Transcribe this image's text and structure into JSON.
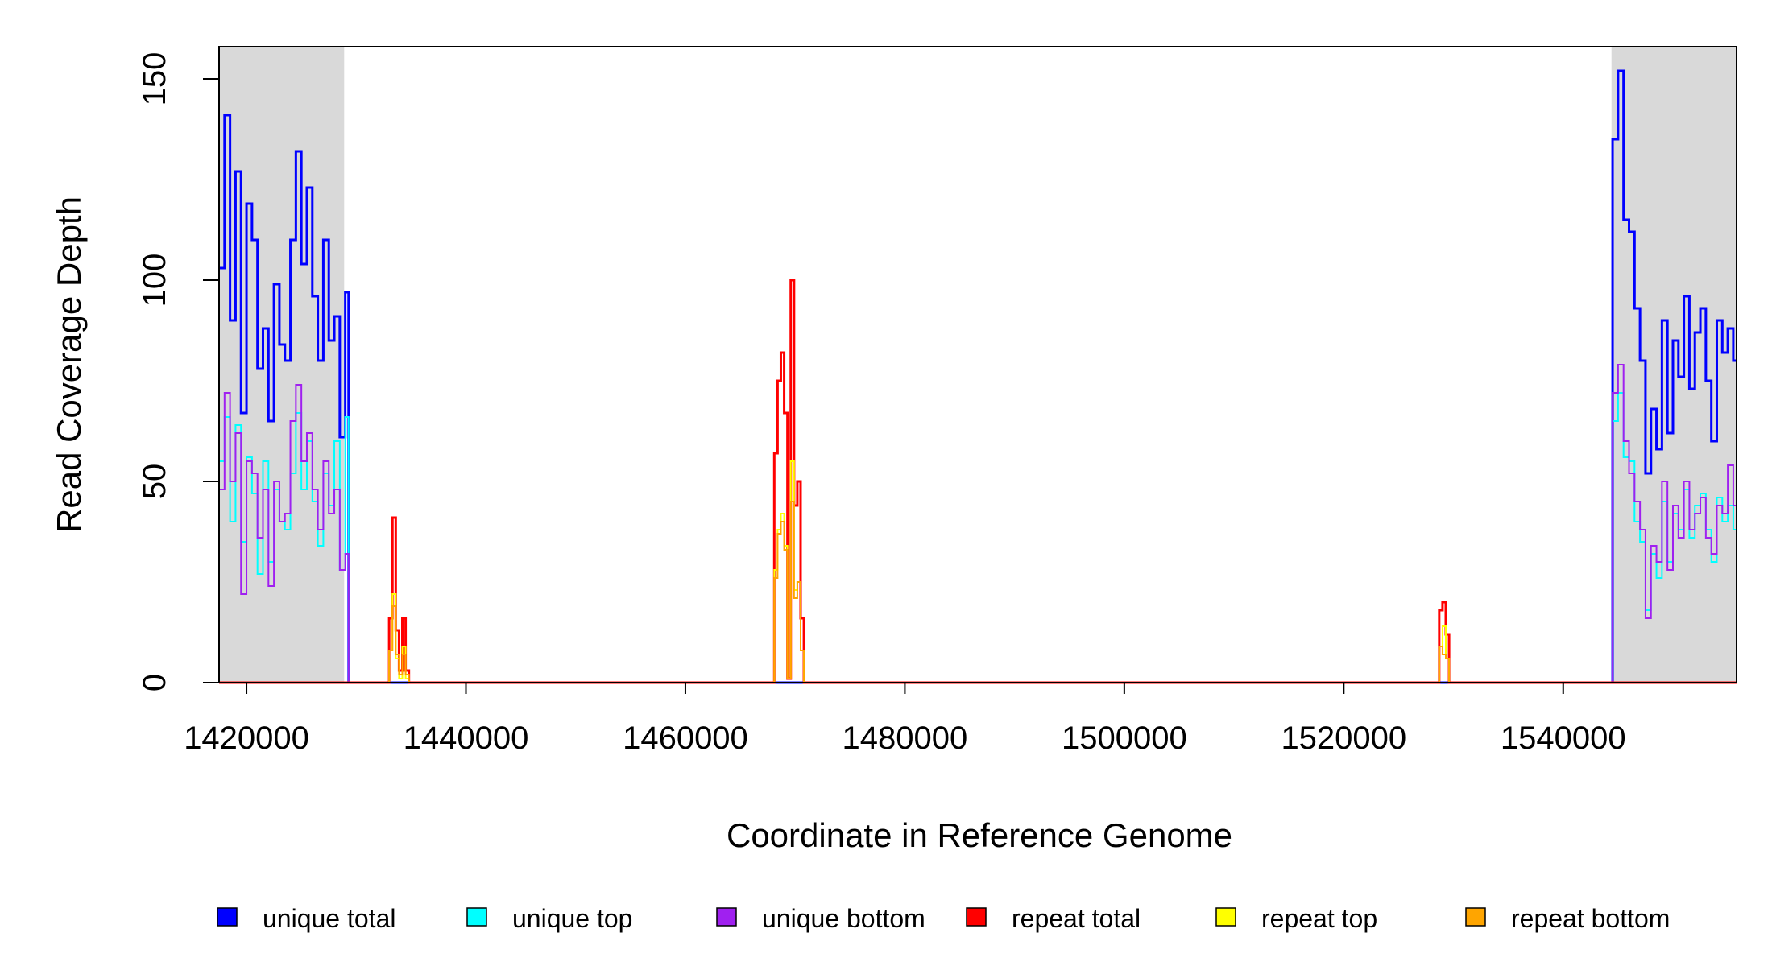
{
  "chart_data": {
    "type": "line",
    "title": "",
    "xlabel": "Coordinate in Reference Genome",
    "ylabel": "Read Coverage Depth",
    "xlim": [
      1417500,
      1555800
    ],
    "ylim": [
      0,
      158
    ],
    "x_ticks": [
      1420000,
      1440000,
      1460000,
      1480000,
      1500000,
      1520000,
      1540000
    ],
    "x_tick_labels": [
      "1420000",
      "1440000",
      "1460000",
      "1480000",
      "1500000",
      "1520000",
      "1540000"
    ],
    "y_ticks": [
      0,
      50,
      100,
      150
    ],
    "y_tick_labels": [
      "0",
      "50",
      "100",
      "150"
    ],
    "grid": false,
    "legend_position": "bottom",
    "shaded_regions": [
      {
        "x": [
          1417500,
          1428900
        ],
        "color": "#d9d9d9"
      },
      {
        "x": [
          1544400,
          1555800
        ],
        "color": "#d9d9d9"
      }
    ],
    "series": [
      {
        "name": "unique total",
        "color": "#0000ff",
        "width": 3,
        "x": [
          1417500,
          1418000,
          1418500,
          1419000,
          1419500,
          1420000,
          1420500,
          1421000,
          1421500,
          1422000,
          1422500,
          1423000,
          1423500,
          1424000,
          1424500,
          1425000,
          1425500,
          1426000,
          1426500,
          1427000,
          1427500,
          1428000,
          1428500,
          1429000,
          1429300,
          1433000,
          1434500,
          1435000,
          1544300,
          1544500,
          1545000,
          1545500,
          1546000,
          1546500,
          1547000,
          1547500,
          1548000,
          1548500,
          1549000,
          1549500,
          1550000,
          1550500,
          1551000,
          1551500,
          1552000,
          1552500,
          1553000,
          1553500,
          1554000,
          1554500,
          1555000,
          1555500
        ],
        "y": [
          103,
          141,
          90,
          127,
          67,
          119,
          110,
          78,
          88,
          65,
          99,
          84,
          80,
          110,
          132,
          104,
          123,
          96,
          80,
          110,
          85,
          91,
          61,
          97,
          0,
          0,
          0,
          0,
          0,
          135,
          152,
          115,
          112,
          93,
          80,
          52,
          68,
          58,
          90,
          62,
          85,
          76,
          96,
          73,
          87,
          93,
          75,
          60,
          90,
          82,
          88,
          80
        ]
      },
      {
        "name": "unique top",
        "color": "#00ffff",
        "width": 2,
        "x": [
          1417500,
          1418000,
          1418500,
          1419000,
          1419500,
          1420000,
          1420500,
          1421000,
          1421500,
          1422000,
          1422500,
          1423000,
          1423500,
          1424000,
          1424500,
          1425000,
          1425500,
          1426000,
          1426500,
          1427000,
          1427500,
          1428000,
          1428500,
          1429000,
          1429300,
          1433000,
          1434500,
          1435000,
          1544300,
          1544500,
          1545000,
          1545500,
          1546000,
          1546500,
          1547000,
          1547500,
          1548000,
          1548500,
          1549000,
          1549500,
          1550000,
          1550500,
          1551000,
          1551500,
          1552000,
          1552500,
          1553000,
          1553500,
          1554000,
          1554500,
          1555000,
          1555500
        ],
        "y": [
          55,
          66,
          40,
          64,
          35,
          56,
          47,
          27,
          55,
          30,
          48,
          40,
          38,
          52,
          67,
          48,
          60,
          45,
          34,
          52,
          44,
          60,
          28,
          66,
          0,
          0,
          0,
          0,
          0,
          65,
          72,
          56,
          55,
          40,
          35,
          18,
          32,
          26,
          45,
          30,
          42,
          38,
          48,
          36,
          44,
          47,
          38,
          30,
          46,
          40,
          44,
          38
        ]
      },
      {
        "name": "unique bottom",
        "color": "#a020f0",
        "width": 2,
        "x": [
          1417500,
          1418000,
          1418500,
          1419000,
          1419500,
          1420000,
          1420500,
          1421000,
          1421500,
          1422000,
          1422500,
          1423000,
          1423500,
          1424000,
          1424500,
          1425000,
          1425500,
          1426000,
          1426500,
          1427000,
          1427500,
          1428000,
          1428500,
          1429000,
          1429300,
          1433000,
          1434500,
          1435000,
          1544300,
          1544500,
          1545000,
          1545500,
          1546000,
          1546500,
          1547000,
          1547500,
          1548000,
          1548500,
          1549000,
          1549500,
          1550000,
          1550500,
          1551000,
          1551500,
          1552000,
          1552500,
          1553000,
          1553500,
          1554000,
          1554500,
          1555000,
          1555500
        ],
        "y": [
          48,
          72,
          50,
          62,
          22,
          55,
          52,
          36,
          48,
          24,
          50,
          40,
          42,
          65,
          74,
          55,
          62,
          48,
          38,
          55,
          42,
          48,
          28,
          32,
          0,
          0,
          0,
          0,
          0,
          72,
          79,
          60,
          52,
          45,
          38,
          16,
          34,
          30,
          50,
          28,
          44,
          36,
          50,
          38,
          42,
          46,
          36,
          32,
          44,
          42,
          54,
          44
        ]
      },
      {
        "name": "repeat total",
        "color": "#ff0000",
        "width": 3,
        "x": [
          1417500,
          1432800,
          1433000,
          1433300,
          1433600,
          1433900,
          1434200,
          1434500,
          1434800,
          1467800,
          1468100,
          1468400,
          1468700,
          1469000,
          1469300,
          1469600,
          1469900,
          1470200,
          1470500,
          1470800,
          1528400,
          1528700,
          1529000,
          1529300,
          1529600,
          1555800
        ],
        "y": [
          0,
          0,
          16,
          41,
          13,
          3,
          16,
          3,
          0,
          0,
          57,
          75,
          82,
          67,
          1,
          100,
          44,
          50,
          16,
          0,
          0,
          18,
          20,
          12,
          0,
          0
        ]
      },
      {
        "name": "repeat top",
        "color": "#ffff00",
        "width": 2,
        "x": [
          1417500,
          1432800,
          1433000,
          1433300,
          1433600,
          1433900,
          1434200,
          1434500,
          1434800,
          1467800,
          1468100,
          1468400,
          1468700,
          1469000,
          1469300,
          1469600,
          1469900,
          1470200,
          1470500,
          1470800,
          1528400,
          1528700,
          1529000,
          1529300,
          1529600,
          1555800
        ],
        "y": [
          0,
          0,
          8,
          22,
          6,
          1,
          9,
          1,
          0,
          0,
          28,
          38,
          42,
          34,
          1,
          55,
          23,
          25,
          8,
          0,
          0,
          9,
          14,
          6,
          0,
          0
        ]
      },
      {
        "name": "repeat bottom",
        "color": "#ffa500",
        "width": 2,
        "x": [
          1417500,
          1432800,
          1433000,
          1433300,
          1433600,
          1433900,
          1434200,
          1434500,
          1434800,
          1467800,
          1468100,
          1468400,
          1468700,
          1469000,
          1469300,
          1469600,
          1469900,
          1470200,
          1470500,
          1470800,
          1528400,
          1528700,
          1529000,
          1529300,
          1529600,
          1555800
        ],
        "y": [
          0,
          0,
          8,
          19,
          7,
          2,
          7,
          2,
          0,
          0,
          26,
          37,
          40,
          33,
          1,
          45,
          21,
          25,
          8,
          0,
          0,
          9,
          7,
          6,
          0,
          0
        ]
      }
    ]
  }
}
